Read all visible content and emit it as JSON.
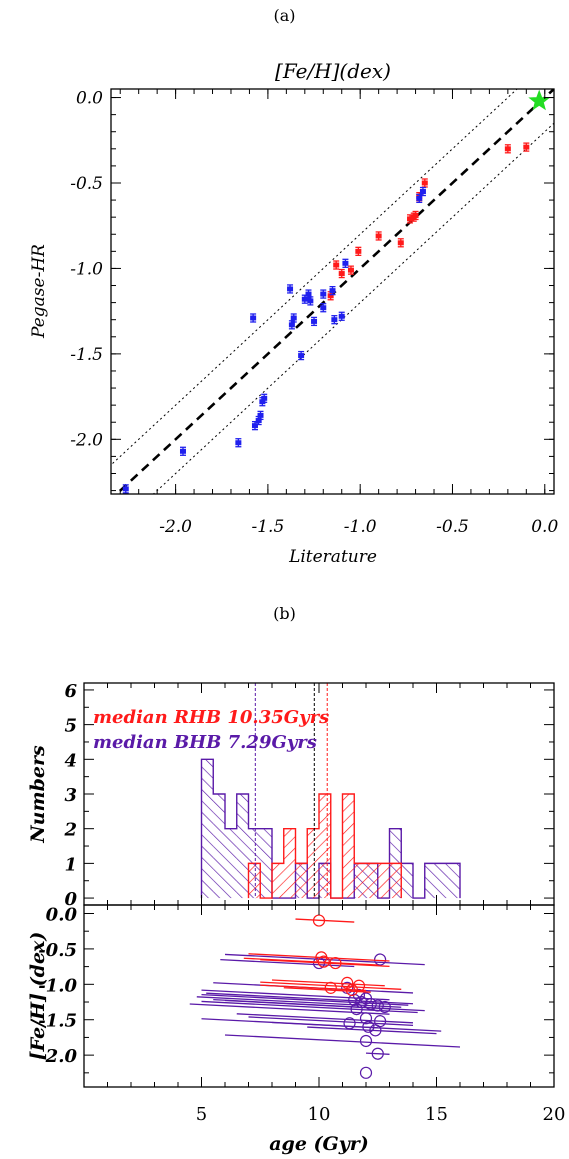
{
  "panel_labels": {
    "a": "(a)",
    "b": "(b)"
  },
  "colors": {
    "red": "#ff1a1a",
    "blue": "#2020ee",
    "purple": "#5a1aa8",
    "green": "#22dd22",
    "axis": "#000000"
  },
  "chart_data": [
    {
      "type": "scatter",
      "title": "[Fe/H](dex)",
      "xlabel": "Literature",
      "ylabel": "Pegase-HR",
      "xlim": [
        -2.35,
        0.05
      ],
      "ylim": [
        -2.32,
        0.05
      ],
      "xticks": [
        -2.0,
        -1.5,
        -1.0,
        -0.5,
        0.0
      ],
      "xtick_labels": [
        "-2.0",
        "-1.5",
        "-1.0",
        "-0.5",
        "0.0"
      ],
      "yticks": [
        0.0,
        -0.5,
        -1.0,
        -1.5,
        -2.0
      ],
      "ytick_labels": [
        "0.0",
        "-0.5",
        "-1.0",
        "-1.5",
        "-2.0"
      ],
      "reference_lines": {
        "identity": true,
        "offset_band": 0.2
      },
      "marker": {
        "x": -0.03,
        "y": -0.02,
        "shape": "star"
      },
      "series": [
        {
          "color": "red",
          "x": [
            -0.65,
            -0.68,
            -0.7,
            -0.71,
            -0.73,
            -0.78,
            -0.9,
            -1.01,
            -1.05,
            -1.1,
            -1.13,
            -1.16,
            -0.2,
            -0.1
          ],
          "y": [
            -0.5,
            -0.58,
            -0.69,
            -0.7,
            -0.71,
            -0.85,
            -0.81,
            -0.9,
            -1.01,
            -1.03,
            -0.98,
            -1.16,
            -0.3,
            -0.29
          ]
        },
        {
          "color": "blue",
          "x": [
            -0.66,
            -0.68,
            -1.08,
            -1.1,
            -1.14,
            -1.15,
            -1.2,
            -1.2,
            -1.25,
            -1.27,
            -1.28,
            -1.3,
            -1.32,
            -1.36,
            -1.37,
            -1.38,
            -1.52,
            -1.53,
            -1.54,
            -1.55,
            -1.57,
            -1.58,
            -1.66,
            -1.96,
            -2.27
          ],
          "y": [
            -0.55,
            -0.59,
            -0.97,
            -1.28,
            -1.3,
            -1.13,
            -1.15,
            -1.23,
            -1.31,
            -1.19,
            -1.15,
            -1.18,
            -1.51,
            -1.29,
            -1.33,
            -1.12,
            -1.76,
            -1.78,
            -1.86,
            -1.89,
            -1.92,
            -1.29,
            -2.02,
            -2.07,
            -2.29
          ]
        }
      ]
    },
    {
      "type": "bar",
      "legend": [
        {
          "text": "median RHB 10.35Gyrs",
          "color": "red"
        },
        {
          "text": "median BHB  7.29Gyrs",
          "color": "purple"
        }
      ],
      "ylabel": "Numbers",
      "xlim": [
        0,
        20
      ],
      "ylim": [
        -0.2,
        6.2
      ],
      "yticks": [
        0,
        1,
        2,
        3,
        4,
        5,
        6
      ],
      "ytick_labels": [
        "0",
        "1",
        "2",
        "3",
        "4",
        "5",
        "6"
      ],
      "bin_width": 0.5,
      "median_lines": [
        {
          "x": 7.29,
          "color": "purple"
        },
        {
          "x": 9.8,
          "color": "black"
        },
        {
          "x": 10.35,
          "color": "red"
        }
      ],
      "series": [
        {
          "color": "purple",
          "bin_edges": [
            5.0,
            5.5,
            6.0,
            6.5,
            7.0,
            7.5,
            8.0,
            8.5,
            9.0,
            9.5,
            10.0,
            10.5,
            11.0,
            11.5,
            12.0,
            12.5,
            13.0,
            13.5,
            14.0,
            14.5,
            15.0,
            15.5
          ],
          "counts": [
            4,
            3,
            2,
            3,
            2,
            2,
            0,
            0,
            1,
            0,
            1,
            0,
            0,
            1,
            1,
            0,
            2,
            1,
            0,
            1,
            1,
            1
          ]
        },
        {
          "color": "red",
          "bin_edges": [
            7.0,
            7.5,
            8.0,
            8.5,
            9.0,
            9.5,
            10.0,
            10.5,
            11.0,
            11.5,
            12.0,
            12.5,
            13.0
          ],
          "counts": [
            1,
            0,
            1,
            2,
            1,
            2,
            3,
            0,
            3,
            1,
            1,
            1,
            1
          ]
        }
      ]
    },
    {
      "type": "scatter",
      "xlabel": "age (Gyr)",
      "ylabel": "[Fe/H] (dex)",
      "xlim": [
        0,
        20
      ],
      "ylim": [
        -2.45,
        0.12
      ],
      "xticks": [
        5,
        10,
        15,
        20
      ],
      "xtick_labels": [
        "5",
        "10",
        "15",
        "20"
      ],
      "yticks": [
        0.0,
        -0.5,
        -1.0,
        -1.5,
        -2.0
      ],
      "ytick_labels": [
        "0.0",
        "-0.5",
        "-1.0",
        "-1.5",
        "-2.0"
      ],
      "series": [
        {
          "color": "red",
          "points": [
            [
              10.0,
              -0.1,
              9.0,
              11.5
            ],
            [
              10.1,
              -0.62,
              7.0,
              13.0
            ],
            [
              10.2,
              -0.68,
              6.8,
              12.5
            ],
            [
              10.7,
              -0.7,
              7.5,
              13.0
            ],
            [
              11.2,
              -0.98,
              8.0,
              12.8
            ],
            [
              11.7,
              -1.02,
              7.5,
              13.5
            ],
            [
              10.5,
              -1.05,
              7.5,
              12.0
            ],
            [
              11.4,
              -1.08,
              8.5,
              12.2
            ]
          ]
        },
        {
          "color": "purple",
          "points": [
            [
              12.6,
              -0.65,
              6.0,
              14.5
            ],
            [
              10.0,
              -0.7,
              5.8,
              11.5
            ],
            [
              11.2,
              -1.05,
              5.5,
              14.0
            ],
            [
              11.7,
              -1.15,
              5.0,
              13.0
            ],
            [
              12.0,
              -1.2,
              5.2,
              14.0
            ],
            [
              11.8,
              -1.25,
              4.8,
              13.5
            ],
            [
              11.5,
              -1.22,
              5.0,
              13.8
            ],
            [
              12.2,
              -1.28,
              5.5,
              13.0
            ],
            [
              12.5,
              -1.3,
              6.0,
              14.5
            ],
            [
              12.8,
              -1.32,
              5.0,
              14.2
            ],
            [
              11.6,
              -1.35,
              4.5,
              13.0
            ],
            [
              12.0,
              -1.48,
              6.5,
              14.0
            ],
            [
              11.3,
              -1.55,
              5.0,
              12.5
            ],
            [
              12.1,
              -1.6,
              8.0,
              15.2
            ],
            [
              12.6,
              -1.52,
              7.0,
              14.0
            ],
            [
              12.4,
              -1.65,
              9.5,
              15.0
            ],
            [
              12.0,
              -1.8,
              6.0,
              16.0
            ],
            [
              12.5,
              -1.98,
              12.0,
              13.0
            ],
            [
              12.0,
              -2.25,
              12.0,
              12.0
            ]
          ]
        }
      ]
    }
  ]
}
